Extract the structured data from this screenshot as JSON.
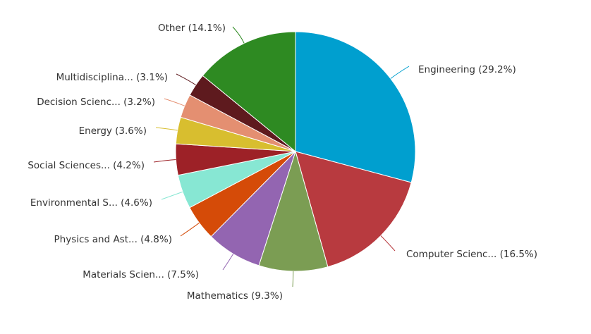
{
  "chart_data": {
    "type": "pie",
    "title": "",
    "categories": [
      "Engineering",
      "Computer Scienc...",
      "Mathematics",
      "Materials Scien...",
      "Physics and Ast...",
      "Environmental S...",
      "Social Sciences...",
      "Energy",
      "Decision Scienc...",
      "Multidisciplina...",
      "Other"
    ],
    "values": [
      29.2,
      16.5,
      9.3,
      7.5,
      4.8,
      4.6,
      4.2,
      3.6,
      3.2,
      3.1,
      14.1
    ],
    "labels": [
      "Engineering (29.2%)",
      "Computer Scienc... (16.5%)",
      "Mathematics (9.3%)",
      "Materials Scien... (7.5%)",
      "Physics and Ast... (4.8%)",
      "Environmental S... (4.6%)",
      "Social Sciences... (4.2%)",
      "Energy (3.6%)",
      "Decision Scienc... (3.2%)",
      "Multidisciplina... (3.1%)",
      "Other (14.1%)"
    ],
    "colors": [
      "#009fcf",
      "#b83a3f",
      "#7b9d53",
      "#9365b1",
      "#d54b08",
      "#87e7d3",
      "#9d2127",
      "#d8be2f",
      "#e48f71",
      "#5e1a1e",
      "#2e8a22"
    ],
    "start_angle": "12 o'clock",
    "direction": "clockwise",
    "legend": "none",
    "grid": false
  }
}
